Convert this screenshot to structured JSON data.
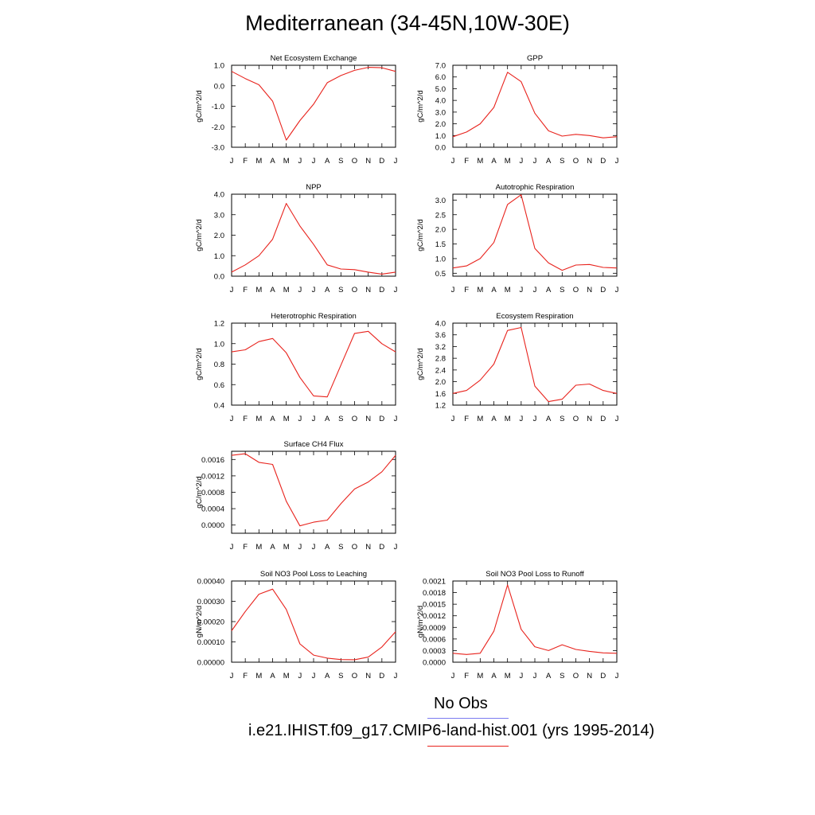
{
  "title": "Mediterranean (34-45N,10W-30E)",
  "colors": {
    "model_line": "#e8231d",
    "obs_line": "#7b7bf0",
    "axis": "#000000"
  },
  "legend": {
    "obs_label": "No Obs",
    "model_label": "i.e21.IHIST.f09_g17.CMIP6-land-hist.001 (yrs 1995-2014)"
  },
  "chart_data": [
    {
      "type": "line",
      "title": "Net Ecosystem Exchange",
      "ylabel": "gC/m^2/d",
      "categories": [
        "J",
        "F",
        "M",
        "A",
        "M",
        "J",
        "J",
        "A",
        "S",
        "O",
        "N",
        "D",
        "J"
      ],
      "ylim": [
        -3.0,
        1.0
      ],
      "yticks": [
        1.0,
        0.0,
        -1.0,
        -2.0,
        -3.0
      ],
      "ytick_labels": [
        "1.0",
        "0.0",
        "-1.0",
        "-2.0",
        "-3.0"
      ],
      "series": [
        {
          "values": [
            0.7,
            0.35,
            0.05,
            -0.75,
            -2.65,
            -1.7,
            -0.9,
            0.15,
            0.5,
            0.75,
            0.9,
            0.88,
            0.7
          ]
        }
      ]
    },
    {
      "type": "line",
      "title": "GPP",
      "ylabel": "gC/m^2/d",
      "categories": [
        "J",
        "F",
        "M",
        "A",
        "M",
        "J",
        "J",
        "A",
        "S",
        "O",
        "N",
        "D",
        "J"
      ],
      "ylim": [
        0.0,
        7.0
      ],
      "yticks": [
        7,
        6,
        5,
        4,
        3,
        2,
        1,
        0
      ],
      "ytick_labels": [
        "7.0",
        "6.0",
        "5.0",
        "4.0",
        "3.0",
        "2.0",
        "1.0",
        "0.0"
      ],
      "series": [
        {
          "values": [
            0.9,
            1.3,
            2.0,
            3.4,
            6.4,
            5.6,
            2.9,
            1.4,
            0.95,
            1.1,
            1.0,
            0.8,
            0.9
          ]
        }
      ]
    },
    {
      "type": "line",
      "title": "NPP",
      "ylabel": "gC/m^2/d",
      "categories": [
        "J",
        "F",
        "M",
        "A",
        "M",
        "J",
        "J",
        "A",
        "S",
        "O",
        "N",
        "D",
        "J"
      ],
      "ylim": [
        0.0,
        4.0
      ],
      "yticks": [
        4,
        3,
        2,
        1,
        0
      ],
      "ytick_labels": [
        "4.0",
        "3.0",
        "2.0",
        "1.0",
        "0.0"
      ],
      "series": [
        {
          "values": [
            0.2,
            0.55,
            1.0,
            1.8,
            3.55,
            2.45,
            1.55,
            0.55,
            0.35,
            0.32,
            0.2,
            0.1,
            0.2
          ]
        }
      ]
    },
    {
      "type": "line",
      "title": "Autotrophic Respiration",
      "ylabel": "gC/m^2/d",
      "categories": [
        "J",
        "F",
        "M",
        "A",
        "M",
        "J",
        "J",
        "A",
        "S",
        "O",
        "N",
        "D",
        "J"
      ],
      "ylim": [
        0.4,
        3.2
      ],
      "yticks": [
        3.0,
        2.5,
        2.0,
        1.5,
        1.0,
        0.5
      ],
      "ytick_labels": [
        "3.0",
        "2.5",
        "2.0",
        "1.5",
        "1.0",
        "0.5"
      ],
      "series": [
        {
          "values": [
            0.68,
            0.75,
            1.0,
            1.55,
            2.85,
            3.18,
            1.35,
            0.85,
            0.6,
            0.78,
            0.8,
            0.7,
            0.68
          ]
        }
      ]
    },
    {
      "type": "line",
      "title": "Heterotrophic Respiration",
      "ylabel": "gC/m^2/d",
      "categories": [
        "J",
        "F",
        "M",
        "A",
        "M",
        "J",
        "J",
        "A",
        "S",
        "O",
        "N",
        "D",
        "J"
      ],
      "ylim": [
        0.4,
        1.2
      ],
      "yticks": [
        1.2,
        1.0,
        0.8,
        0.6,
        0.4
      ],
      "ytick_labels": [
        "1.2",
        "1.0",
        "0.8",
        "0.6",
        "0.4"
      ],
      "series": [
        {
          "values": [
            0.92,
            0.94,
            1.02,
            1.05,
            0.91,
            0.67,
            0.49,
            0.48,
            0.79,
            1.1,
            1.12,
            1.0,
            0.92
          ]
        }
      ]
    },
    {
      "type": "line",
      "title": "Ecosystem Respiration",
      "ylabel": "gC/m^2/d",
      "categories": [
        "J",
        "F",
        "M",
        "A",
        "M",
        "J",
        "J",
        "A",
        "S",
        "O",
        "N",
        "D",
        "J"
      ],
      "ylim": [
        1.2,
        4.0
      ],
      "yticks": [
        4.0,
        3.6,
        3.2,
        2.8,
        2.4,
        2.0,
        1.6,
        1.2
      ],
      "ytick_labels": [
        "4.0",
        "3.6",
        "3.2",
        "2.8",
        "2.4",
        "2.0",
        "1.6",
        "1.2"
      ],
      "series": [
        {
          "values": [
            1.6,
            1.7,
            2.05,
            2.6,
            3.75,
            3.85,
            1.85,
            1.32,
            1.4,
            1.88,
            1.92,
            1.7,
            1.6
          ]
        }
      ]
    },
    {
      "type": "line",
      "title": "Surface CH4 Flux",
      "ylabel": "gC/m^2/d",
      "categories": [
        "J",
        "F",
        "M",
        "A",
        "M",
        "J",
        "J",
        "A",
        "S",
        "O",
        "N",
        "D",
        "J"
      ],
      "ylim": [
        -0.0002,
        0.0018
      ],
      "yticks": [
        0.0016,
        0.0012,
        0.0008,
        0.0004,
        0.0
      ],
      "ytick_labels": [
        "0.0016",
        "0.0012",
        "0.0008",
        "0.0004",
        "0.0000"
      ],
      "series": [
        {
          "values": [
            0.0017,
            0.00174,
            0.00153,
            0.00148,
            0.00058,
            -2e-05,
            7e-05,
            0.00012,
            0.00052,
            0.00088,
            0.00105,
            0.0013,
            0.0017
          ]
        }
      ]
    },
    {
      "type": "line",
      "title": "Soil NO3 Pool Loss to Leaching",
      "ylabel": "gN/m^2/d",
      "categories": [
        "J",
        "F",
        "M",
        "A",
        "M",
        "J",
        "J",
        "A",
        "S",
        "O",
        "N",
        "D",
        "J"
      ],
      "ylim": [
        0.0,
        0.0004
      ],
      "yticks": [
        0.0004,
        0.0003,
        0.0002,
        0.0001,
        0.0
      ],
      "ytick_labels": [
        "0.00040",
        "0.00030",
        "0.00020",
        "0.00010",
        "0.00000"
      ],
      "series": [
        {
          "values": [
            0.000155,
            0.00025,
            0.000335,
            0.00036,
            0.00026,
            9e-05,
            3.5e-05,
            2e-05,
            1.3e-05,
            1.2e-05,
            2.5e-05,
            7.5e-05,
            0.00015
          ]
        }
      ]
    },
    {
      "type": "line",
      "title": "Soil NO3 Pool Loss to Runoff",
      "ylabel": "gN/m^2/d",
      "categories": [
        "J",
        "F",
        "M",
        "A",
        "M",
        "J",
        "J",
        "A",
        "S",
        "O",
        "N",
        "D",
        "J"
      ],
      "ylim": [
        0.0,
        0.0021
      ],
      "yticks": [
        0.0021,
        0.0018,
        0.0015,
        0.0012,
        0.0009,
        0.0006,
        0.0003,
        0.0
      ],
      "ytick_labels": [
        "0.0021",
        "0.0018",
        "0.0015",
        "0.0012",
        "0.0009",
        "0.0006",
        "0.0003",
        "0.0000"
      ],
      "series": [
        {
          "values": [
            0.00023,
            0.0002,
            0.00023,
            0.0008,
            0.002,
            0.00085,
            0.0004,
            0.0003,
            0.00045,
            0.00033,
            0.00028,
            0.00024,
            0.00023
          ]
        }
      ]
    }
  ]
}
